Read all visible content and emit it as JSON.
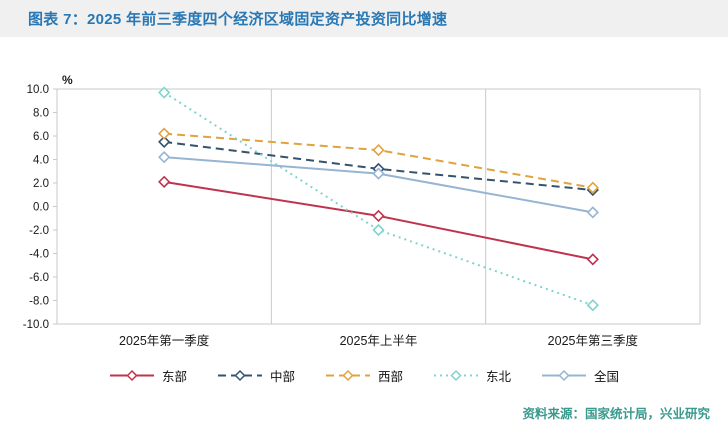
{
  "title": "图表 7：2025 年前三季度四个经济区域固定资产投资同比增速",
  "source": "资料来源：国家统计局，兴业研究",
  "chart_data": {
    "type": "line",
    "title": "2025 年前三季度四个经济区域固定资产投资同比增速",
    "ylabel": "%",
    "ylim": [
      -10,
      10
    ],
    "ytick_step": 2,
    "yticks": [
      "10.0",
      "8.0",
      "6.0",
      "4.0",
      "2.0",
      "0.0",
      "-2.0",
      "-4.0",
      "-6.0",
      "-8.0",
      "-10.0"
    ],
    "categories": [
      "2025年第一季度",
      "2025年上半年",
      "2025年第三季度"
    ],
    "grid": "vertical-category-dividers",
    "legend_position": "bottom",
    "series": [
      {
        "name": "东部",
        "values": [
          2.1,
          -0.8,
          -4.5
        ],
        "color": "#c0334f",
        "style": "solid"
      },
      {
        "name": "中部",
        "values": [
          5.5,
          3.2,
          1.4
        ],
        "color": "#35536f",
        "style": "dashed"
      },
      {
        "name": "西部",
        "values": [
          6.2,
          4.8,
          1.6
        ],
        "color": "#e0a33e",
        "style": "dashed"
      },
      {
        "name": "东北",
        "values": [
          9.7,
          -2.0,
          -8.4
        ],
        "color": "#7fd4cd",
        "style": "dotted"
      },
      {
        "name": "全国",
        "values": [
          4.2,
          2.8,
          -0.5
        ],
        "color": "#96b5d3",
        "style": "solid"
      }
    ]
  }
}
